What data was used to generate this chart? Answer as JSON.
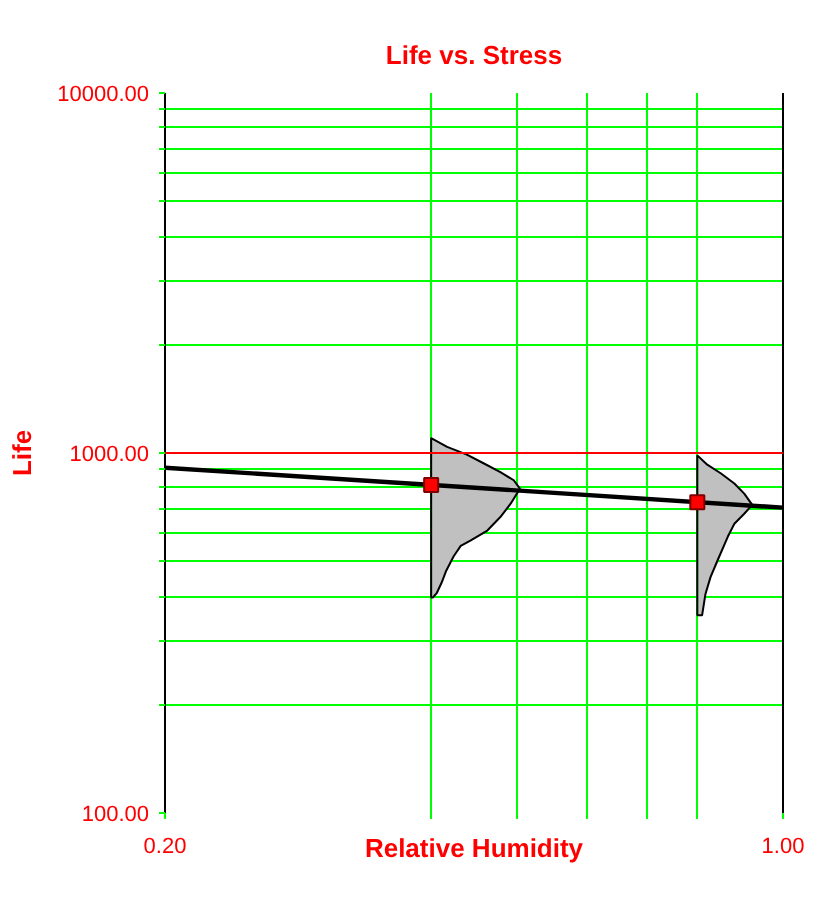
{
  "chart_data": {
    "type": "line",
    "title": "Life vs. Stress",
    "xlabel": "Relative Humidity",
    "ylabel": "Life",
    "log": "xy",
    "xlim": [
      0.2,
      1
    ],
    "ylim": [
      100,
      10000
    ],
    "xticks": [
      {
        "value": 0.2,
        "label": "0.20"
      },
      {
        "value": 0.4,
        "label": null
      },
      {
        "value": 0.5,
        "label": null
      },
      {
        "value": 0.6,
        "label": null
      },
      {
        "value": 0.7,
        "label": null
      },
      {
        "value": 0.8,
        "label": null
      },
      {
        "value": 1,
        "label": "1.00"
      }
    ],
    "yticks": [
      {
        "value": 100,
        "label": "100.00"
      },
      {
        "value": 200,
        "label": null
      },
      {
        "value": 300,
        "label": null
      },
      {
        "value": 400,
        "label": null
      },
      {
        "value": 500,
        "label": null
      },
      {
        "value": 600,
        "label": null
      },
      {
        "value": 700,
        "label": null
      },
      {
        "value": 800,
        "label": null
      },
      {
        "value": 900,
        "label": null
      },
      {
        "value": 1000,
        "label": "1000.00"
      },
      {
        "value": 2000,
        "label": null
      },
      {
        "value": 3000,
        "label": null
      },
      {
        "value": 4000,
        "label": null
      },
      {
        "value": 5000,
        "label": null
      },
      {
        "value": 6000,
        "label": null
      },
      {
        "value": 7000,
        "label": null
      },
      {
        "value": 8000,
        "label": null
      },
      {
        "value": 9000,
        "label": null
      },
      {
        "value": 10000,
        "label": "10000.00"
      }
    ],
    "grid": true,
    "ref_lines": [
      {
        "axis": "y",
        "value": 1000,
        "color": "#ff0000"
      }
    ],
    "series": [
      {
        "type": "area",
        "color": "#c0c0c0",
        "x": [
          0.4,
          0.417,
          0.439,
          0.459,
          0.479,
          0.496,
          0.504,
          0.492,
          0.479,
          0.463,
          0.443,
          0.432,
          0.424,
          0.416,
          0.411,
          0.406,
          0.402,
          0.4
        ],
        "values": [
          1100,
          1040,
          990,
          935,
          885,
          840,
          796,
          723,
          664,
          609,
          571,
          552,
          516,
          471,
          436,
          409,
          397,
          397
        ]
      },
      {
        "type": "area",
        "color": "#c0c0c0",
        "x": [
          0.8,
          0.821,
          0.851,
          0.881,
          0.904,
          0.923,
          0.904,
          0.881,
          0.866,
          0.843,
          0.828,
          0.817,
          0.81,
          0.8
        ],
        "values": [
          985,
          928,
          877,
          823,
          771,
          718,
          678,
          636,
          585,
          502,
          452,
          405,
          354,
          354
        ]
      },
      {
        "color": "#000000",
        "x": [
          0.2,
          1
        ],
        "values": [
          910,
          705
        ]
      },
      {
        "type": "scatter",
        "color": "#ff0000",
        "marker": "square",
        "x": [
          0.4,
          0.8
        ],
        "values": [
          815,
          730
        ]
      }
    ]
  }
}
